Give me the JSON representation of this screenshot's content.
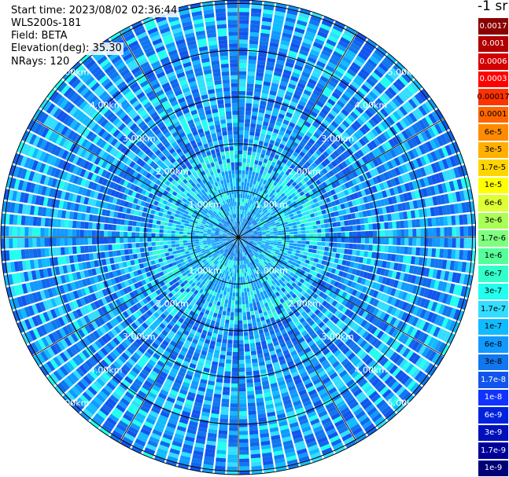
{
  "info": {
    "start_time": "Start time: 2023/08/02 02:36:44",
    "instrument": "WLS200s-181",
    "field": "Field: BETA",
    "elevation": "Elevation(deg): 35.30",
    "nrays": "NRays: 120"
  },
  "chart_data": {
    "type": "heatmap",
    "projection": "polar-ppi",
    "field": "BETA",
    "units": "-1 sr",
    "n_rays": 120,
    "elevation_deg": 35.3,
    "range_rings_km": [
      1.0,
      2.0,
      3.0,
      4.0,
      5.0
    ],
    "ring_labels": [
      "1.00km",
      "2.00km",
      "3.00km",
      "4.00km",
      "5.00km"
    ],
    "spoke_angles_deg": [
      0,
      30,
      60,
      90,
      120,
      150,
      180,
      210,
      240,
      270,
      300,
      330
    ],
    "colorbar": {
      "labels": [
        "0.0017",
        "0.001",
        "0.0006",
        "0.0003",
        "0.00017",
        "0.0001",
        "6e-5",
        "3e-5",
        "1.7e-5",
        "1e-5",
        "6e-6",
        "3e-6",
        "1.7e-6",
        "1e-6",
        "6e-7",
        "3e-7",
        "1.7e-7",
        "1e-7",
        "6e-8",
        "3e-8",
        "1.7e-8",
        "1e-8",
        "6e-9",
        "3e-9",
        "1.7e-9",
        "1e-9"
      ],
      "colors": [
        "#8b0000",
        "#b00000",
        "#d40000",
        "#ff0000",
        "#ff3300",
        "#ff6600",
        "#ff8c00",
        "#ffb000",
        "#ffd500",
        "#ffff00",
        "#ddff33",
        "#aaff55",
        "#7fff7f",
        "#55ff99",
        "#33ffcc",
        "#22ffee",
        "#33ddff",
        "#11bbff",
        "#1199ff",
        "#1177ee",
        "#1155ee",
        "#1133ff",
        "#0022dd",
        "#0011bb",
        "#000099",
        "#000077"
      ],
      "text_colors": [
        "#ffffff",
        "#ffffff",
        "#ffffff",
        "#ffffff",
        "#000000",
        "#000000",
        "#000000",
        "#000000",
        "#000000",
        "#000000",
        "#000000",
        "#000000",
        "#000000",
        "#000000",
        "#000000",
        "#000000",
        "#000000",
        "#000000",
        "#000000",
        "#000000",
        "#ffffff",
        "#ffffff",
        "#ffffff",
        "#ffffff",
        "#ffffff",
        "#ffffff"
      ]
    },
    "background_range": [
      "1.7e-8",
      "1e-7"
    ],
    "near_field_range": [
      "1.7e-7",
      "6e-7"
    ]
  }
}
